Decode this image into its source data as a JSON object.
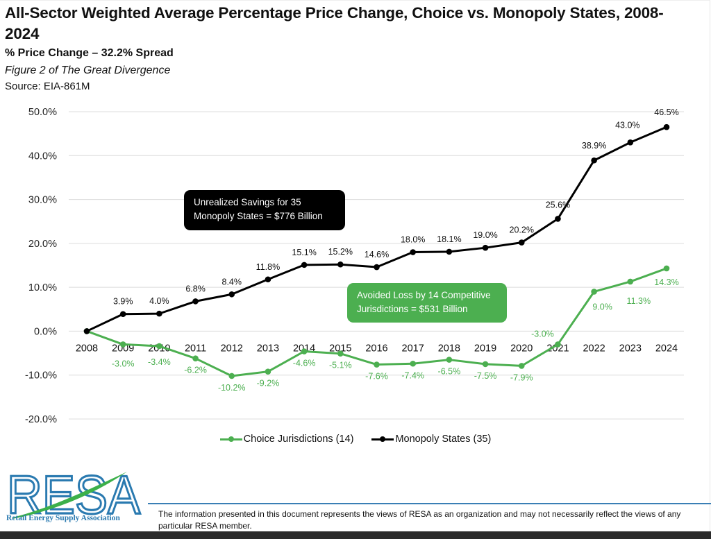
{
  "header": {
    "title": "All-Sector Weighted Average Percentage Price Change, Choice vs. Monopoly States, 2008-2024",
    "subtitle": "% Price Change – 32.2% Spread",
    "figure_caption": "Figure 2 of The Great Divergence",
    "source": "Source: EIA-861M"
  },
  "chart_data": {
    "type": "line",
    "title": "All-Sector Weighted Average Percentage Price Change, Choice vs. Monopoly States, 2008-2024",
    "subtitle": "% Price Change – 32.2% Spread",
    "xlabel": "",
    "ylabel": "",
    "x": [
      "2008",
      "2009",
      "2010",
      "2011",
      "2012",
      "2013",
      "2014",
      "2015",
      "2016",
      "2017",
      "2018",
      "2019",
      "2020",
      "2021",
      "2022",
      "2023",
      "2024"
    ],
    "ylim": [
      -20,
      50
    ],
    "yticks": [
      50,
      40,
      30,
      20,
      10,
      0,
      -10,
      -20
    ],
    "ytick_labels": [
      "50.0%",
      "40.0%",
      "30.0%",
      "20.0%",
      "10.0%",
      "0.0%",
      "-10.0%",
      "-20.0%"
    ],
    "grid": true,
    "legend_position": "bottom",
    "series": [
      {
        "name": "Choice Jurisdictions (14)",
        "color": "#4caf50",
        "values": [
          0.0,
          -3.0,
          -3.4,
          -6.2,
          -10.2,
          -9.2,
          -4.6,
          -5.1,
          -7.6,
          -7.4,
          -6.5,
          -7.5,
          -7.9,
          -3.0,
          9.0,
          11.3,
          14.3
        ],
        "labels": [
          null,
          "-3.0%",
          "-3.4%",
          "-6.2%",
          "-10.2%",
          "-9.2%",
          "-4.6%",
          "-5.1%",
          "-7.6%",
          "-7.4%",
          "-6.5%",
          "-7.5%",
          "-7.9%",
          "-3.0%",
          "9.0%",
          "11.3%",
          "14.3%"
        ]
      },
      {
        "name": "Monopoly States (35)",
        "color": "#000000",
        "values": [
          0.0,
          3.9,
          4.0,
          6.8,
          8.4,
          11.8,
          15.1,
          15.2,
          14.6,
          18.0,
          18.1,
          19.0,
          20.2,
          25.6,
          38.9,
          43.0,
          46.5
        ],
        "labels": [
          null,
          "3.9%",
          "4.0%",
          "6.8%",
          "8.4%",
          "11.8%",
          "15.1%",
          "15.2%",
          "14.6%",
          "18.0%",
          "18.1%",
          "19.0%",
          "20.2%",
          "25.6%",
          "38.9%",
          "43.0%",
          "46.5%"
        ]
      }
    ],
    "annotations": [
      {
        "text_line1": "Unrealized Savings for 35",
        "text_line2": "Monopoly States = $776 Billion",
        "color": "#000000"
      },
      {
        "text_line1": "Avoided Loss by 14 Competitive",
        "text_line2": "Jurisdictions = $531 Billion",
        "color": "#4caf50"
      }
    ]
  },
  "legend": {
    "items": [
      {
        "label": "Choice Jurisdictions (14)",
        "color": "#4caf50"
      },
      {
        "label": "Monopoly States (35)",
        "color": "#000000"
      }
    ]
  },
  "footer": {
    "logo_text": "RESA",
    "logo_subtitle": "Retail Energy Supply Association",
    "disclaimer": "The information presented in this document represents the views of RESA as an organization and may not necessarily reflect the views of any particular RESA member."
  }
}
